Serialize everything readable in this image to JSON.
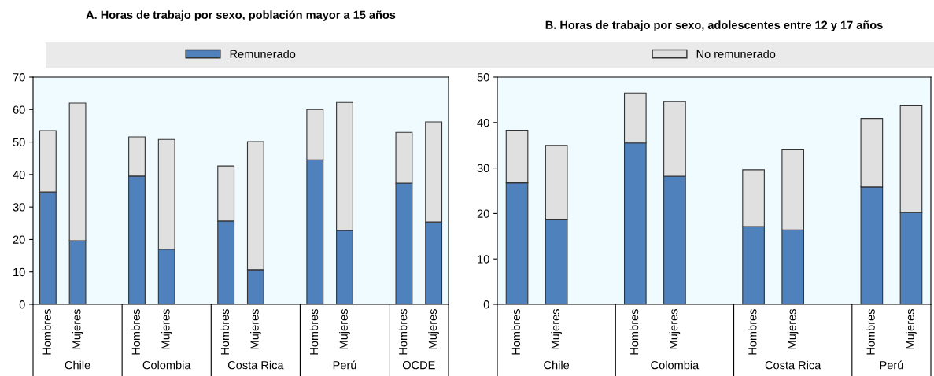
{
  "chart_data": [
    {
      "type": "bar",
      "stacked": true,
      "title": "A. Horas de trabajo por sexo, población mayor a 15 años",
      "categories": [
        "Hombres",
        "Mujeres",
        null,
        "Hombres",
        "Mujeres",
        null,
        "Hombres",
        "Mujeres",
        null,
        "Hombres",
        "Mujeres",
        null,
        "Hombres",
        "Mujeres"
      ],
      "series": [
        {
          "name": "Remunerado",
          "color": "#4f81bd",
          "values": [
            34.6,
            19.6,
            null,
            39.5,
            17.0,
            null,
            25.7,
            10.7,
            null,
            44.5,
            22.8,
            null,
            37.3,
            25.4
          ]
        },
        {
          "name": "No remunerado",
          "color": "#e0e0e0",
          "values": [
            18.9,
            42.4,
            null,
            12.1,
            33.8,
            null,
            16.9,
            39.4,
            null,
            15.5,
            39.4,
            null,
            15.7,
            30.8
          ]
        }
      ],
      "annotations": [
        "Chile",
        "Colombia",
        "Costa Rica",
        "Perú",
        "OCDE"
      ],
      "ylim": [
        0,
        70
      ],
      "yticks": [
        0,
        10,
        20,
        30,
        40,
        50,
        60,
        70
      ],
      "grid": false,
      "legend": "top"
    },
    {
      "type": "bar",
      "stacked": true,
      "title": "B. Horas de trabajo por sexo, adolescentes entre 12 y 17 años",
      "categories": [
        "Hombres",
        "Mujeres",
        null,
        "Hombres",
        "Mujeres",
        null,
        "Hombres",
        "Mujeres",
        null,
        "Hombres",
        "Mujeres"
      ],
      "series": [
        {
          "color": "#4f81bd",
          "values": [
            26.7,
            18.6,
            null,
            35.5,
            28.2,
            null,
            17.1,
            16.4,
            null,
            25.8,
            20.2
          ]
        },
        {
          "color": "#e0e0e0",
          "values": [
            11.6,
            16.4,
            null,
            11.0,
            16.4,
            null,
            12.5,
            17.6,
            null,
            15.1,
            23.5
          ]
        }
      ],
      "annotations": [
        "Chile",
        "Colombia",
        "Costa Rica",
        "Perú"
      ],
      "ylim": [
        0,
        50
      ],
      "yticks": [
        0,
        10,
        20,
        30,
        40,
        50
      ],
      "grid": false,
      "legend": "top"
    }
  ]
}
